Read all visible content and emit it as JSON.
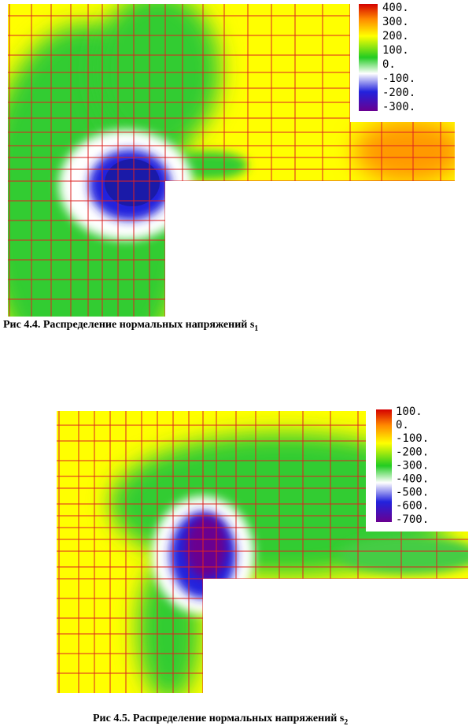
{
  "figures": [
    {
      "legend_labels": [
        "400.",
        "300.",
        "200.",
        "100.",
        "0.",
        "-100.",
        "-200.",
        "-300."
      ],
      "caption": {
        "text": "Рис 4.4. Распределение нормальных   напряжений s",
        "subscript": "1"
      }
    },
    {
      "legend_labels": [
        "100.",
        "0.",
        "-100.",
        "-200.",
        "-300.",
        "-400.",
        "-500.",
        "-600.",
        "-700."
      ],
      "caption": {
        "text": "Рис 4.5. Распределение нормальных напряжений s",
        "subscript": "2"
      }
    }
  ]
}
